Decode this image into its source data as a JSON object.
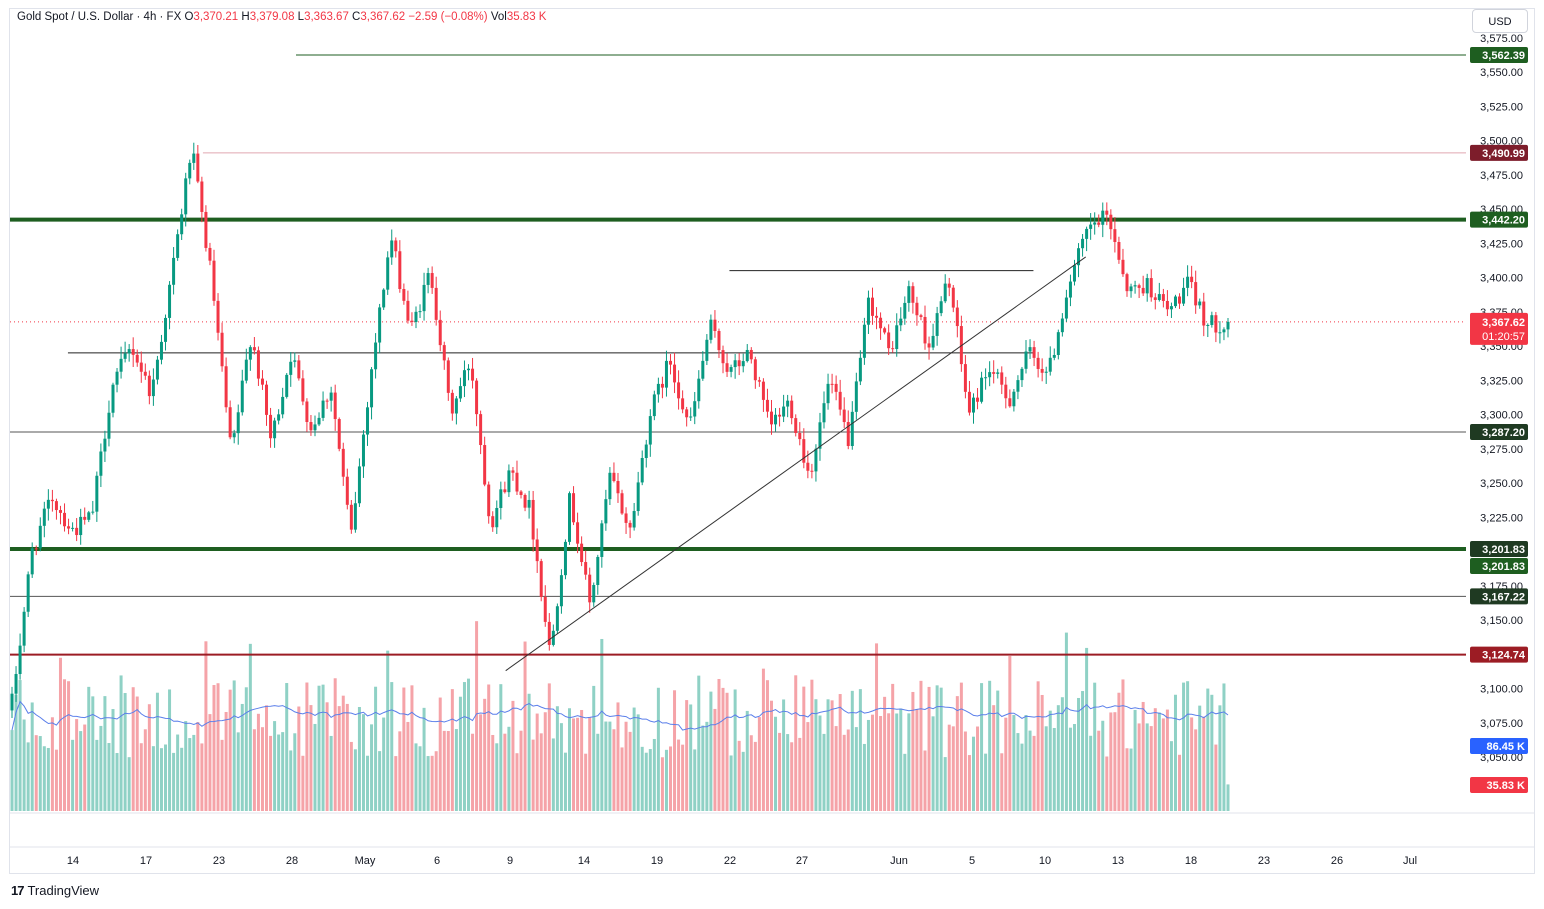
{
  "header": {
    "symbol": "Gold Spot / U.S. Dollar · 4h · FX",
    "o_label": "O",
    "o_value": "3,370.21",
    "h_label": "H",
    "h_value": "3,379.08",
    "l_label": "L",
    "l_value": "3,363.67",
    "c_label": "C",
    "c_value": "3,367.62",
    "change": "−2.59 (−0.08%)",
    "vol_label": "Vol",
    "vol_value": "35.83 K"
  },
  "currency_button": "USD",
  "branding": {
    "logo": "17",
    "name": "TradingView"
  },
  "colors": {
    "up": "#089981",
    "down": "#f23645",
    "up_vol": "#8fd1c5",
    "down_vol": "#f5a3a8",
    "support_green": "#1e5e20",
    "thin_line": "#555555",
    "high_line": "#e0a6b0",
    "low_line": "#9c1c24",
    "ma_line": "#5b7fea",
    "trendline": "#333333"
  },
  "chart_data": {
    "type": "candlestick",
    "symbol": "XAUUSD",
    "timeframe": "4h",
    "ylim": [
      3010,
      3580
    ],
    "y_ticks": [
      3050,
      3075,
      3100,
      3125,
      3150,
      3175,
      3200,
      3225,
      3250,
      3275,
      3300,
      3325,
      3350,
      3375,
      3400,
      3425,
      3450,
      3475,
      3500,
      3525,
      3550,
      3575
    ],
    "x_ticks": [
      "14",
      "17",
      "23",
      "28",
      "May",
      "6",
      "9",
      "14",
      "19",
      "22",
      "27",
      "Jun",
      "5",
      "10",
      "13",
      "18",
      "23",
      "26",
      "Jul"
    ],
    "anchors": [
      {
        "v": 3090,
        "d": "d"
      },
      {
        "v": 3200,
        "d": "u"
      },
      {
        "v": 3240,
        "d": "u"
      },
      {
        "v": 3215,
        "d": "d"
      },
      {
        "v": 3225,
        "d": "u"
      },
      {
        "v": 3320,
        "d": "u"
      },
      {
        "v": 3350,
        "d": "u"
      },
      {
        "v": 3315,
        "d": "d"
      },
      {
        "v": 3400,
        "d": "u"
      },
      {
        "v": 3495,
        "d": "u"
      },
      {
        "v": 3400,
        "d": "d"
      },
      {
        "v": 3270,
        "d": "d"
      },
      {
        "v": 3360,
        "d": "u"
      },
      {
        "v": 3280,
        "d": "d"
      },
      {
        "v": 3345,
        "d": "u"
      },
      {
        "v": 3290,
        "d": "d"
      },
      {
        "v": 3320,
        "d": "u"
      },
      {
        "v": 3210,
        "d": "d"
      },
      {
        "v": 3330,
        "d": "u"
      },
      {
        "v": 3430,
        "d": "u"
      },
      {
        "v": 3360,
        "d": "d"
      },
      {
        "v": 3405,
        "d": "u"
      },
      {
        "v": 3300,
        "d": "d"
      },
      {
        "v": 3340,
        "d": "u"
      },
      {
        "v": 3220,
        "d": "d"
      },
      {
        "v": 3260,
        "d": "u"
      },
      {
        "v": 3230,
        "d": "d"
      },
      {
        "v": 3125,
        "d": "d"
      },
      {
        "v": 3240,
        "d": "u"
      },
      {
        "v": 3160,
        "d": "d"
      },
      {
        "v": 3255,
        "d": "u"
      },
      {
        "v": 3215,
        "d": "d"
      },
      {
        "v": 3300,
        "d": "u"
      },
      {
        "v": 3340,
        "d": "u"
      },
      {
        "v": 3290,
        "d": "d"
      },
      {
        "v": 3365,
        "d": "u"
      },
      {
        "v": 3330,
        "d": "d"
      },
      {
        "v": 3345,
        "d": "u"
      },
      {
        "v": 3290,
        "d": "d"
      },
      {
        "v": 3310,
        "d": "u"
      },
      {
        "v": 3255,
        "d": "d"
      },
      {
        "v": 3325,
        "d": "u"
      },
      {
        "v": 3280,
        "d": "d"
      },
      {
        "v": 3385,
        "d": "u"
      },
      {
        "v": 3345,
        "d": "d"
      },
      {
        "v": 3390,
        "d": "u"
      },
      {
        "v": 3350,
        "d": "d"
      },
      {
        "v": 3400,
        "d": "u"
      },
      {
        "v": 3300,
        "d": "d"
      },
      {
        "v": 3335,
        "d": "u"
      },
      {
        "v": 3310,
        "d": "d"
      },
      {
        "v": 3345,
        "d": "u"
      },
      {
        "v": 3330,
        "d": "d"
      },
      {
        "v": 3395,
        "d": "u"
      },
      {
        "v": 3435,
        "d": "u"
      },
      {
        "v": 3445,
        "d": "u"
      },
      {
        "v": 3390,
        "d": "d"
      },
      {
        "v": 3395,
        "d": "u"
      },
      {
        "v": 3375,
        "d": "d"
      },
      {
        "v": 3395,
        "d": "u"
      },
      {
        "v": 3365,
        "d": "d"
      },
      {
        "v": 3367.62,
        "d": "d"
      }
    ],
    "horizontal_levels": [
      {
        "label": "3,562.39",
        "value": 3562.39,
        "color": "#1e5e20",
        "style": "thin"
      },
      {
        "label": "3,490.99",
        "value": 3490.99,
        "color": "#7d1d2b",
        "style": "high"
      },
      {
        "label": "3,442.20",
        "value": 3442.2,
        "color": "#1e5e20",
        "style": "thick"
      },
      {
        "label": "3,287.20",
        "value": 3287.2,
        "color": "#1e5e20",
        "style": "thin"
      },
      {
        "label": "3,201.83",
        "value": 3201.83,
        "color": "#1e5e20",
        "style": "thick"
      },
      {
        "label": "3,167.22",
        "value": 3167.22,
        "color": "#1e5e20",
        "style": "thin"
      },
      {
        "label": "3,124.74",
        "value": 3124.74,
        "color": "#9c1c24",
        "style": "low"
      }
    ],
    "range_lines": [
      {
        "value": 3405,
        "from_bar": 0.59,
        "to_bar": 0.84
      },
      {
        "value": 3345,
        "from_bar": 0.046,
        "to_bar": 0.84
      }
    ],
    "trendline": {
      "from": {
        "bar_frac": 0.406,
        "value": 3113
      },
      "to": {
        "bar_frac": 0.883,
        "value": 3415
      }
    },
    "last_price": {
      "label": "3,367.62",
      "value": 3367.62,
      "countdown": "01:20:57"
    },
    "volume": {
      "ma_label": "86.45 K",
      "last_label": "35.83 K"
    }
  }
}
